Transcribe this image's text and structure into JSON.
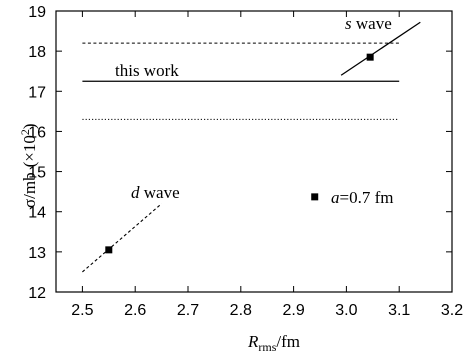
{
  "chart_data": {
    "type": "line",
    "xlabel": {
      "main": "R",
      "sub": "rms",
      "rest": "/fm"
    },
    "ylabel": {
      "greek": "σ",
      "unit": "/mb",
      "factor_open": "(×10",
      "factor_exp": "2",
      "factor_close": ")"
    },
    "xlim": [
      2.45,
      3.2
    ],
    "ylim": [
      12,
      19
    ],
    "xticks": [
      "2.5",
      "2.6",
      "2.7",
      "2.8",
      "2.9",
      "3.0",
      "3.1",
      "3.2"
    ],
    "yticks": [
      "12",
      "13",
      "14",
      "15",
      "16",
      "17",
      "18",
      "19"
    ],
    "grid": false,
    "series": [
      {
        "name": "this work",
        "style": "solid",
        "x": [
          2.5,
          3.1
        ],
        "y": [
          17.25,
          17.25
        ]
      },
      {
        "style": "dashed",
        "x": [
          2.5,
          3.1
        ],
        "y": [
          18.2,
          18.2
        ]
      },
      {
        "style": "dotted",
        "x": [
          2.5,
          3.1
        ],
        "y": [
          16.3,
          16.3
        ]
      },
      {
        "style": "solid",
        "x": [
          2.99,
          3.14
        ],
        "y": [
          17.4,
          18.72
        ]
      },
      {
        "style": "dashed",
        "x": [
          2.5,
          2.65
        ],
        "y": [
          12.5,
          14.2
        ]
      }
    ],
    "points": [
      {
        "x": 3.045,
        "y": 17.85
      },
      {
        "x": 2.55,
        "y": 13.05
      }
    ],
    "annotations": {
      "s_wave": {
        "italic": "s",
        "rest": " wave"
      },
      "this_work": "this work",
      "d_wave": {
        "italic": "d",
        "rest": " wave"
      },
      "a_param": {
        "italic": "a",
        "rest": "=0.7 fm"
      }
    },
    "legend_marker_point": {
      "x": 2.94,
      "y": 14.37
    }
  }
}
